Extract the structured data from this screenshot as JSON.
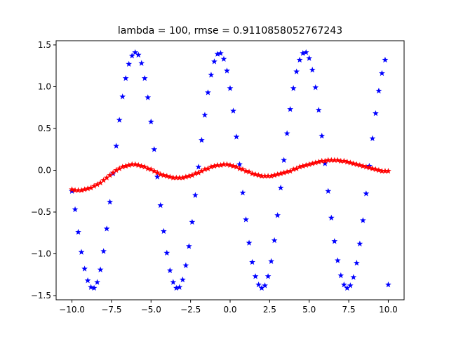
{
  "chart_data": {
    "type": "scatter",
    "title": "lambda = 100, rmse = 0.9110858052767243",
    "xlabel": "",
    "ylabel": "",
    "xlim": [
      -11.0,
      11.0
    ],
    "ylim": [
      -1.55,
      1.55
    ],
    "grid": false,
    "marker": "star",
    "x_ticks": [
      -10.0,
      -7.5,
      -5.0,
      -2.5,
      0.0,
      2.5,
      5.0,
      7.5,
      10.0
    ],
    "x_tick_labels": [
      "−10.0",
      "−7.5",
      "−5.0",
      "−2.5",
      "0.0",
      "2.5",
      "5.0",
      "7.5",
      "10.0"
    ],
    "y_ticks": [
      -1.5,
      -1.0,
      -0.5,
      0.0,
      0.5,
      1.0,
      1.5
    ],
    "y_tick_labels": [
      "−1.5",
      "−1.0",
      "−0.5",
      "0.0",
      "0.5",
      "1.0",
      "1.5"
    ],
    "series": [
      {
        "color": "#0000ff",
        "x": [
          -10.0,
          -9.8,
          -9.6,
          -9.4,
          -9.2,
          -9.0,
          -8.8,
          -8.6,
          -8.4,
          -8.2,
          -8.0,
          -7.8,
          -7.6,
          -7.4,
          -7.2,
          -7.0,
          -6.8,
          -6.6,
          -6.4,
          -6.2,
          -6.0,
          -5.8,
          -5.6,
          -5.4,
          -5.2,
          -5.0,
          -4.8,
          -4.6,
          -4.4,
          -4.2,
          -4.0,
          -3.8,
          -3.6,
          -3.4,
          -3.2,
          -3.0,
          -2.8,
          -2.6,
          -2.4,
          -2.2,
          -2.0,
          -1.8,
          -1.6,
          -1.4,
          -1.2,
          -1.0,
          -0.8,
          -0.6,
          -0.4,
          -0.2,
          0.0,
          0.2,
          0.4,
          0.6,
          0.8,
          1.0,
          1.2,
          1.4,
          1.6,
          1.8,
          2.0,
          2.2,
          2.4,
          2.6,
          2.8,
          3.0,
          3.2,
          3.4,
          3.6,
          3.8,
          4.0,
          4.2,
          4.4,
          4.6,
          4.8,
          5.0,
          5.2,
          5.4,
          5.6,
          5.8,
          6.0,
          6.2,
          6.4,
          6.6,
          6.8,
          7.0,
          7.2,
          7.4,
          7.6,
          7.8,
          8.0,
          8.2,
          8.4,
          8.6,
          8.8,
          9.0,
          9.2,
          9.4,
          9.6,
          9.8,
          10.0
        ],
        "y": [
          -0.25,
          -0.47,
          -0.74,
          -0.98,
          -1.18,
          -1.32,
          -1.4,
          -1.41,
          -1.34,
          -1.19,
          -0.97,
          -0.7,
          -0.38,
          -0.04,
          0.29,
          0.6,
          0.88,
          1.1,
          1.27,
          1.37,
          1.41,
          1.38,
          1.28,
          1.1,
          0.87,
          0.58,
          0.25,
          -0.08,
          -0.42,
          -0.73,
          -0.99,
          -1.2,
          -1.34,
          -1.41,
          -1.4,
          -1.31,
          -1.14,
          -0.91,
          -0.62,
          -0.3,
          0.04,
          0.36,
          0.66,
          0.93,
          1.14,
          1.3,
          1.39,
          1.4,
          1.33,
          1.19,
          0.98,
          0.71,
          0.4,
          0.07,
          -0.27,
          -0.59,
          -0.87,
          -1.1,
          -1.27,
          -1.37,
          -1.41,
          -1.38,
          -1.27,
          -1.09,
          -0.84,
          -0.54,
          -0.21,
          0.12,
          0.44,
          0.73,
          0.98,
          1.18,
          1.32,
          1.4,
          1.41,
          1.34,
          1.2,
          0.99,
          0.72,
          0.41,
          0.08,
          -0.25,
          -0.57,
          -0.85,
          -1.08,
          -1.26,
          -1.37,
          -1.41,
          -1.38,
          -1.28,
          -1.11,
          -0.88,
          -0.6,
          -0.28,
          0.05,
          0.38,
          0.68,
          0.95,
          1.16,
          1.32,
          -1.37
        ]
      },
      {
        "color": "#ff0000",
        "x": [
          -10.0,
          -9.8,
          -9.6,
          -9.4,
          -9.2,
          -9.0,
          -8.8,
          -8.6,
          -8.4,
          -8.2,
          -8.0,
          -7.8,
          -7.6,
          -7.4,
          -7.2,
          -7.0,
          -6.8,
          -6.6,
          -6.4,
          -6.2,
          -6.0,
          -5.8,
          -5.6,
          -5.4,
          -5.2,
          -5.0,
          -4.8,
          -4.6,
          -4.4,
          -4.2,
          -4.0,
          -3.8,
          -3.6,
          -3.4,
          -3.2,
          -3.0,
          -2.8,
          -2.6,
          -2.4,
          -2.2,
          -2.0,
          -1.8,
          -1.6,
          -1.4,
          -1.2,
          -1.0,
          -0.8,
          -0.6,
          -0.4,
          -0.2,
          0.0,
          0.2,
          0.4,
          0.6,
          0.8,
          1.0,
          1.2,
          1.4,
          1.6,
          1.8,
          2.0,
          2.2,
          2.4,
          2.6,
          2.8,
          3.0,
          3.2,
          3.4,
          3.6,
          3.8,
          4.0,
          4.2,
          4.4,
          4.6,
          4.8,
          5.0,
          5.2,
          5.4,
          5.6,
          5.8,
          6.0,
          6.2,
          6.4,
          6.6,
          6.8,
          7.0,
          7.2,
          7.4,
          7.6,
          7.8,
          8.0,
          8.2,
          8.4,
          8.6,
          8.8,
          9.0,
          9.2,
          9.4,
          9.6,
          9.8,
          10.0
        ],
        "y": [
          -0.23,
          -0.24,
          -0.24,
          -0.24,
          -0.23,
          -0.22,
          -0.21,
          -0.19,
          -0.17,
          -0.15,
          -0.12,
          -0.09,
          -0.06,
          -0.03,
          0.0,
          0.02,
          0.04,
          0.05,
          0.06,
          0.07,
          0.07,
          0.06,
          0.05,
          0.04,
          0.02,
          0.01,
          -0.01,
          -0.03,
          -0.05,
          -0.06,
          -0.07,
          -0.08,
          -0.09,
          -0.09,
          -0.09,
          -0.09,
          -0.08,
          -0.07,
          -0.06,
          -0.04,
          -0.03,
          -0.01,
          0.01,
          0.02,
          0.04,
          0.05,
          0.06,
          0.06,
          0.07,
          0.07,
          0.06,
          0.05,
          0.04,
          0.02,
          0.01,
          -0.01,
          -0.02,
          -0.04,
          -0.05,
          -0.06,
          -0.07,
          -0.07,
          -0.07,
          -0.07,
          -0.06,
          -0.05,
          -0.04,
          -0.03,
          -0.02,
          -0.01,
          0.01,
          0.02,
          0.04,
          0.05,
          0.06,
          0.07,
          0.08,
          0.09,
          0.1,
          0.11,
          0.11,
          0.12,
          0.12,
          0.12,
          0.12,
          0.11,
          0.11,
          0.1,
          0.09,
          0.08,
          0.07,
          0.06,
          0.05,
          0.04,
          0.03,
          0.02,
          0.01,
          0.0,
          -0.01,
          -0.01,
          -0.01
        ]
      }
    ]
  }
}
